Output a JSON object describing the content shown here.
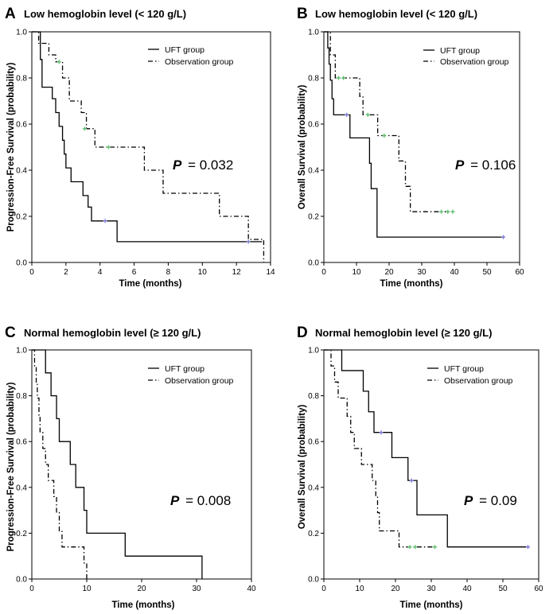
{
  "legend_labels": {
    "uft": "UFT group",
    "obs": "Observation group"
  },
  "colors": {
    "line": "#000000",
    "censor_uft": "#7b7bd6",
    "censor_obs": "#5fbf6f"
  },
  "chart_data": [
    {
      "type": "line",
      "letter": "A",
      "title": "Low hemoglobin level (< 120 g/L)",
      "xlabel": "Time (months)",
      "ylabel": "Progression-Free Survival (probability)",
      "xlim": [
        0,
        14
      ],
      "ylim": [
        0,
        1
      ],
      "xticks": [
        0,
        2,
        4,
        6,
        8,
        10,
        12,
        14
      ],
      "yticks": [
        0.0,
        0.2,
        0.4,
        0.6,
        0.8,
        1.0
      ],
      "xtick_labels": [
        "0",
        "2",
        "4",
        "6",
        "8",
        "10",
        "12",
        "14"
      ],
      "ytick_labels": [
        "0.0",
        "0.2",
        "0.4",
        "0.6",
        "0.8",
        "1.0"
      ],
      "p_label": "P",
      "p_value": "= 0.032",
      "series": [
        {
          "name": "UFT group",
          "style": "solid",
          "steps": [
            [
              0,
              1.0
            ],
            [
              0.5,
              0.88
            ],
            [
              0.6,
              0.76
            ],
            [
              1.2,
              0.71
            ],
            [
              1.4,
              0.65
            ],
            [
              1.6,
              0.59
            ],
            [
              1.8,
              0.53
            ],
            [
              1.9,
              0.47
            ],
            [
              2.0,
              0.41
            ],
            [
              2.3,
              0.35
            ],
            [
              3.0,
              0.29
            ],
            [
              3.3,
              0.24
            ],
            [
              3.5,
              0.18
            ],
            [
              5.0,
              0.09
            ]
          ],
          "censor": [
            [
              4.3,
              0.18
            ],
            [
              12.7,
              0.09
            ]
          ],
          "end": 13.5
        },
        {
          "name": "Observation group",
          "style": "dashdot",
          "steps": [
            [
              0,
              1.0
            ],
            [
              0.4,
              0.95
            ],
            [
              1.0,
              0.9
            ],
            [
              1.4,
              0.87
            ],
            [
              1.8,
              0.8
            ],
            [
              2.2,
              0.7
            ],
            [
              2.9,
              0.65
            ],
            [
              3.2,
              0.58
            ],
            [
              3.7,
              0.5
            ],
            [
              6.6,
              0.4
            ],
            [
              7.7,
              0.3
            ],
            [
              11.0,
              0.2
            ],
            [
              12.7,
              0.1
            ],
            [
              13.6,
              0.0
            ]
          ],
          "censor": [
            [
              1.6,
              0.87
            ],
            [
              3.1,
              0.58
            ],
            [
              4.5,
              0.5
            ]
          ],
          "end": 13.6
        }
      ]
    },
    {
      "type": "line",
      "letter": "B",
      "title": "Low hemoglobin level (< 120 g/L)",
      "xlabel": "Time (months)",
      "ylabel": "Overall Survival (probability)",
      "xlim": [
        0,
        60
      ],
      "ylim": [
        0,
        1
      ],
      "xticks": [
        0,
        10,
        20,
        30,
        40,
        50,
        60
      ],
      "yticks": [
        0.0,
        0.2,
        0.4,
        0.6,
        0.8,
        1.0
      ],
      "xtick_labels": [
        "0",
        "10",
        "20",
        "30",
        "40",
        "50",
        "60"
      ],
      "ytick_labels": [
        "0.0",
        "0.2",
        "0.4",
        "0.6",
        "0.8",
        "1.0"
      ],
      "p_label": "P",
      "p_value": "= 0.106",
      "series": [
        {
          "name": "UFT group",
          "style": "solid",
          "steps": [
            [
              0,
              1.0
            ],
            [
              1.2,
              0.93
            ],
            [
              1.6,
              0.86
            ],
            [
              2.0,
              0.79
            ],
            [
              2.5,
              0.71
            ],
            [
              3.0,
              0.64
            ],
            [
              8.0,
              0.54
            ],
            [
              14.0,
              0.43
            ],
            [
              14.5,
              0.32
            ],
            [
              16.3,
              0.11
            ]
          ],
          "censor": [
            [
              7.0,
              0.64
            ],
            [
              55.0,
              0.11
            ]
          ],
          "end": 55.0
        },
        {
          "name": "Observation group",
          "style": "dashdot",
          "steps": [
            [
              0,
              1.0
            ],
            [
              2.0,
              0.9
            ],
            [
              3.5,
              0.8
            ],
            [
              11.0,
              0.72
            ],
            [
              12.0,
              0.64
            ],
            [
              16.5,
              0.55
            ],
            [
              23.0,
              0.44
            ],
            [
              25.0,
              0.33
            ],
            [
              26.5,
              0.22
            ]
          ],
          "censor": [
            [
              4.5,
              0.8
            ],
            [
              6.0,
              0.8
            ],
            [
              13.5,
              0.64
            ],
            [
              18.5,
              0.55
            ],
            [
              36.0,
              0.22
            ],
            [
              38.0,
              0.22
            ],
            [
              39.5,
              0.22
            ]
          ],
          "end": 40.0
        }
      ]
    },
    {
      "type": "line",
      "letter": "C",
      "title": "Normal hemoglobin level (≥ 120 g/L)",
      "xlabel": "Time (months)",
      "ylabel": "Progression-Free Survival (probability)",
      "xlim": [
        0,
        40
      ],
      "ylim": [
        0,
        1
      ],
      "xticks": [
        0,
        10,
        20,
        30,
        40
      ],
      "yticks": [
        0.0,
        0.2,
        0.4,
        0.6,
        0.8,
        1.0
      ],
      "xtick_labels": [
        "0",
        "10",
        "20",
        "30",
        "40"
      ],
      "ytick_labels": [
        "0.0",
        "0.2",
        "0.4",
        "0.6",
        "0.8",
        "1.0"
      ],
      "p_label": "P",
      "p_value": "= 0.008",
      "series": [
        {
          "name": "UFT group",
          "style": "solid",
          "steps": [
            [
              0,
              1.0
            ],
            [
              2.5,
              0.9
            ],
            [
              3.5,
              0.8
            ],
            [
              4.5,
              0.7
            ],
            [
              5.0,
              0.6
            ],
            [
              7.0,
              0.5
            ],
            [
              8.0,
              0.4
            ],
            [
              9.5,
              0.3
            ],
            [
              10.0,
              0.2
            ],
            [
              17.0,
              0.1
            ],
            [
              31.0,
              0.0
            ]
          ],
          "censor": [],
          "end": 31.0
        },
        {
          "name": "Observation group",
          "style": "dashdot",
          "steps": [
            [
              0,
              1.0
            ],
            [
              0.5,
              0.93
            ],
            [
              0.8,
              0.86
            ],
            [
              1.0,
              0.79
            ],
            [
              1.3,
              0.71
            ],
            [
              1.5,
              0.64
            ],
            [
              2.0,
              0.57
            ],
            [
              2.5,
              0.5
            ],
            [
              3.0,
              0.43
            ],
            [
              4.0,
              0.36
            ],
            [
              4.5,
              0.29
            ],
            [
              5.0,
              0.21
            ],
            [
              5.5,
              0.14
            ],
            [
              9.5,
              0.07
            ],
            [
              10.0,
              0.0
            ]
          ],
          "censor": [],
          "end": 10.0
        }
      ]
    },
    {
      "type": "line",
      "letter": "D",
      "title": "Normal hemoglobin level (≥ 120 g/L)",
      "xlabel": "Time (months)",
      "ylabel": "Overall Survival (probability)",
      "xlim": [
        0,
        60
      ],
      "ylim": [
        0,
        1
      ],
      "xticks": [
        0,
        10,
        20,
        30,
        40,
        50,
        60
      ],
      "yticks": [
        0.0,
        0.2,
        0.4,
        0.6,
        0.8,
        1.0
      ],
      "xtick_labels": [
        "0",
        "10",
        "20",
        "30",
        "40",
        "50",
        "60"
      ],
      "ytick_labels": [
        "0.0",
        "0.2",
        "0.4",
        "0.6",
        "0.8",
        "1.0"
      ],
      "p_label": "P",
      "p_value": "= 0.09",
      "series": [
        {
          "name": "UFT group",
          "style": "solid",
          "steps": [
            [
              0,
              1.0
            ],
            [
              5.0,
              0.91
            ],
            [
              11.0,
              0.82
            ],
            [
              12.5,
              0.73
            ],
            [
              14.0,
              0.64
            ],
            [
              19.0,
              0.53
            ],
            [
              23.5,
              0.43
            ],
            [
              26.0,
              0.28
            ],
            [
              34.5,
              0.14
            ]
          ],
          "censor": [
            [
              16.0,
              0.64
            ],
            [
              24.5,
              0.43
            ],
            [
              57.0,
              0.14
            ]
          ],
          "end": 57.0
        },
        {
          "name": "Observation group",
          "style": "dashdot",
          "steps": [
            [
              0,
              1.0
            ],
            [
              2.0,
              0.93
            ],
            [
              3.0,
              0.86
            ],
            [
              4.0,
              0.79
            ],
            [
              6.5,
              0.71
            ],
            [
              7.5,
              0.64
            ],
            [
              8.5,
              0.57
            ],
            [
              10.5,
              0.5
            ],
            [
              13.5,
              0.43
            ],
            [
              14.5,
              0.36
            ],
            [
              15.0,
              0.29
            ],
            [
              15.5,
              0.21
            ],
            [
              21.0,
              0.14
            ]
          ],
          "censor": [
            [
              24.0,
              0.14
            ],
            [
              25.5,
              0.14
            ],
            [
              31.0,
              0.14
            ]
          ],
          "end": 31.0
        }
      ]
    }
  ]
}
